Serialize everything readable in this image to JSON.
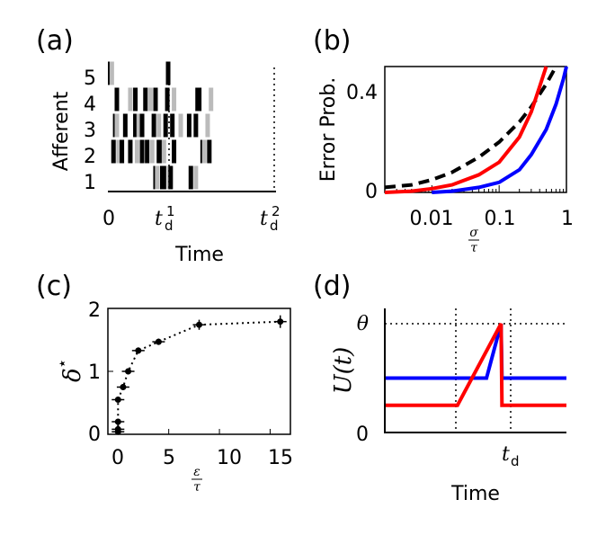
{
  "chart_data": [
    {
      "panel": "(a)",
      "type": "raster",
      "xlabel": "Time",
      "ylabel": "Afferent",
      "yticks": [
        "1",
        "2",
        "3",
        "4",
        "5"
      ],
      "xtick_labels": [
        "0",
        "t_d^1",
        "t_d^2"
      ],
      "xtick_labels_display": {
        "zero": "0",
        "td1_base": "t",
        "td1_sub": "d",
        "td1_sup": "1",
        "td2_base": "t",
        "td2_sub": "d",
        "td2_sup": "2"
      },
      "xlim": [
        0,
        100
      ],
      "vlines_at": [
        36,
        97
      ],
      "spikes": [
        {
          "afferent": 5,
          "t": [
            0,
            1,
            34.5
          ]
        },
        {
          "afferent": 4,
          "t": [
            4,
            12,
            15,
            21,
            24,
            27,
            34,
            38,
            52,
            53,
            60
          ]
        },
        {
          "afferent": 3,
          "t": [
            3,
            4,
            9,
            15,
            17,
            19,
            26,
            29,
            33,
            37,
            42,
            47,
            51,
            58
          ]
        },
        {
          "afferent": 2,
          "t": [
            2,
            5,
            7,
            12,
            16,
            19,
            22,
            25,
            29,
            30,
            32,
            38,
            55,
            56,
            59
          ]
        },
        {
          "afferent": 1,
          "t": [
            27,
            28,
            31,
            32,
            35,
            36,
            48,
            51
          ]
        }
      ],
      "spike_colors": {
        "black": "#000000",
        "gray": "#bbbbbb"
      }
    },
    {
      "panel": "(b)",
      "type": "line",
      "ylabel": "Error Prob.",
      "xlabel": "σ/τ",
      "xlabel_display": {
        "num": "σ",
        "den": "τ"
      },
      "xscale": "log",
      "xlim": [
        0.002,
        1
      ],
      "ylim": [
        0,
        0.5
      ],
      "xtick_labels": [
        "0.01",
        "0.1",
        "1"
      ],
      "ytick_labels": [
        "0",
        "0.4"
      ],
      "series": [
        {
          "color": "#000000",
          "style": "dashed",
          "x": [
            0.002,
            0.005,
            0.01,
            0.02,
            0.05,
            0.1,
            0.2,
            0.3,
            0.5,
            0.7
          ],
          "y": [
            0.02,
            0.03,
            0.05,
            0.08,
            0.14,
            0.2,
            0.28,
            0.34,
            0.43,
            0.5
          ]
        },
        {
          "color": "#ff0000",
          "style": "solid",
          "x": [
            0.002,
            0.005,
            0.01,
            0.02,
            0.05,
            0.1,
            0.2,
            0.3,
            0.4,
            0.5
          ],
          "y": [
            0.0,
            0.005,
            0.015,
            0.03,
            0.07,
            0.12,
            0.22,
            0.32,
            0.42,
            0.5
          ]
        },
        {
          "color": "#0000ff",
          "style": "solid",
          "x": [
            0.01,
            0.02,
            0.05,
            0.1,
            0.2,
            0.3,
            0.5,
            0.7,
            0.9,
            1.0
          ],
          "y": [
            0.0,
            0.005,
            0.02,
            0.04,
            0.09,
            0.15,
            0.25,
            0.35,
            0.45,
            0.5
          ]
        }
      ]
    },
    {
      "panel": "(c)",
      "type": "scatter",
      "xlabel": "ε/τ",
      "xlabel_display": {
        "num": "ε",
        "den": "τ"
      },
      "ylabel": "δ*",
      "ylabel_display": {
        "base": "δ",
        "sup": "⋆"
      },
      "xlim": [
        -1,
        17
      ],
      "ylim": [
        0,
        2
      ],
      "xtick_labels": [
        "0",
        "5",
        "10",
        "15"
      ],
      "ytick_labels": [
        "0",
        "1",
        "2"
      ],
      "points": [
        {
          "x": 0.0,
          "y": 0.04,
          "err": 0.02
        },
        {
          "x": 0.0,
          "y": 0.08,
          "err": 0.03
        },
        {
          "x": 0.0,
          "y": 0.2,
          "err": 0.03
        },
        {
          "x": 0.0,
          "y": 0.55,
          "err": 0.04
        },
        {
          "x": 0.5,
          "y": 0.75,
          "err": 0.05
        },
        {
          "x": 1.0,
          "y": 1.0,
          "err": 0.05
        },
        {
          "x": 2.0,
          "y": 1.33,
          "err": 0.05
        },
        {
          "x": 4.0,
          "y": 1.47,
          "err": 0.05
        },
        {
          "x": 8.0,
          "y": 1.74,
          "err": 0.08
        },
        {
          "x": 16.0,
          "y": 1.79,
          "err": 0.1
        }
      ],
      "fit_line": "dotted"
    },
    {
      "panel": "(d)",
      "type": "line",
      "xlabel": "Time",
      "ylabel": "U(t)",
      "ylabel_display": {
        "text": "U(t)"
      },
      "ytick_labels": [
        "0",
        "θ"
      ],
      "xtick_label": "t_d",
      "xtick_label_display": {
        "base": "t",
        "sub": "d"
      },
      "xlim": [
        0,
        10
      ],
      "ylim": [
        0,
        1
      ],
      "hline_threshold": 1,
      "vlines_at": [
        4,
        6.4
      ],
      "series": [
        {
          "color": "#0000ff",
          "x": [
            0,
            5.6,
            6.4,
            6.45,
            10
          ],
          "y": [
            0.5,
            0.5,
            1.0,
            0.5,
            0.5
          ]
        },
        {
          "color": "#ff0000",
          "x": [
            0,
            4.0,
            6.4,
            6.45,
            10
          ],
          "y": [
            0.25,
            0.25,
            1.0,
            0.25,
            0.25
          ]
        }
      ]
    }
  ]
}
